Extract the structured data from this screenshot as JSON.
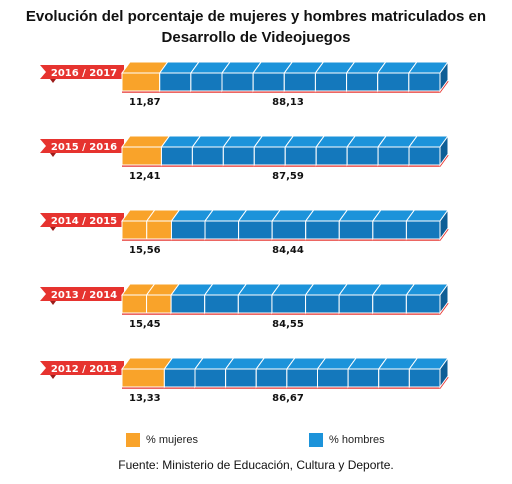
{
  "title_line1": "Evolución del porcentaje de mujeres y hombres matriculados en",
  "title_line2": "Desarrollo de Videojuegos",
  "source": "Fuente: Ministerio de Educación, Cultura y Deporte.",
  "colors": {
    "women": "#F9A32A",
    "women_side": "#E48A14",
    "men": "#1C93DA",
    "men_front": "#1478BC",
    "men_side": "#0E5E96",
    "label_band": "#E6332F",
    "label_band_dark": "#9C1C1A"
  },
  "chart_data": {
    "type": "bar",
    "stacked": true,
    "orientation": "horizontal",
    "title": "Evolución del porcentaje de mujeres y hombres matriculados en Desarrollo de Videojuegos",
    "categories": [
      "2016 / 2017",
      "2015 / 2016",
      "2014 / 2015",
      "2013 / 2014",
      "2012 / 2013"
    ],
    "value_labels": {
      "women": [
        "11,87",
        "12,41",
        "15,56",
        "15,45",
        "13,33"
      ],
      "men": [
        "88,13",
        "87,59",
        "84,44",
        "84,55",
        "86,67"
      ]
    },
    "series": [
      {
        "name": "% mujeres",
        "values": [
          11.87,
          12.41,
          15.56,
          15.45,
          13.33
        ]
      },
      {
        "name": "% hombres",
        "values": [
          88.13,
          87.59,
          84.44,
          84.55,
          86.67
        ]
      }
    ],
    "xlim": [
      0,
      100
    ],
    "legend": "bottom",
    "grid": false
  }
}
